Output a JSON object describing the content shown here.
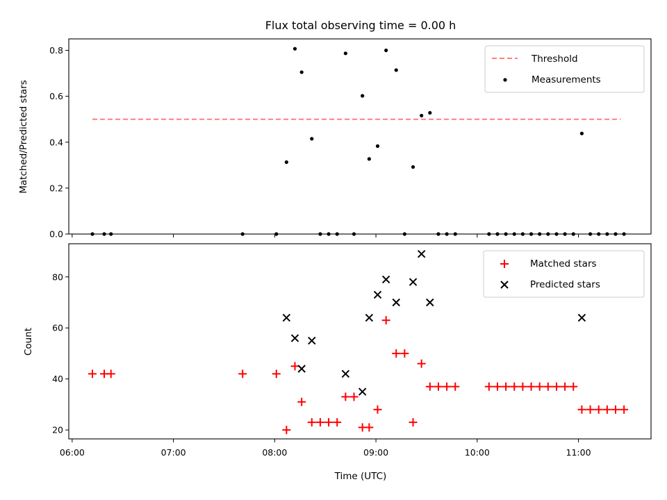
{
  "chart_data": [
    {
      "type": "scatter",
      "title": "Flux total observing time = 0.00 h",
      "ylabel": "Matched/Predicted stars",
      "xlabel": "",
      "xlim": [
        "05:58",
        "11:43"
      ],
      "ylim": [
        0,
        0.85
      ],
      "yticks": [
        0.0,
        0.2,
        0.4,
        0.6,
        0.8
      ],
      "ytick_labels": [
        "0.0",
        "0.2",
        "0.4",
        "0.6",
        "0.8"
      ],
      "xticks": [
        "06:00",
        "07:00",
        "08:00",
        "09:00",
        "10:00",
        "11:00"
      ],
      "legend_position": "top-right",
      "series": [
        {
          "name": "Threshold",
          "kind": "dashed-line",
          "color": "#ff7f7f",
          "x": [
            "06:12",
            "11:25"
          ],
          "y": [
            0.5,
            0.5
          ]
        },
        {
          "name": "Measurements",
          "kind": "dots",
          "color": "#000000",
          "x": [
            "06:12",
            "06:19",
            "06:23",
            "07:41",
            "08:01",
            "08:07",
            "08:12",
            "08:16",
            "08:22",
            "08:27",
            "08:32",
            "08:37",
            "08:42",
            "08:47",
            "08:52",
            "08:56",
            "09:01",
            "09:06",
            "09:12",
            "09:17",
            "09:22",
            "09:27",
            "09:32",
            "09:37",
            "09:42",
            "09:47",
            "10:07",
            "10:12",
            "10:17",
            "10:22",
            "10:27",
            "10:32",
            "10:37",
            "10:42",
            "10:47",
            "10:52",
            "10:57",
            "11:02",
            "11:07",
            "11:12",
            "11:17",
            "11:22",
            "11:27"
          ],
          "y": [
            0,
            0,
            0,
            0,
            0,
            0.313,
            0.807,
            0.705,
            0.415,
            0,
            0,
            0,
            0.787,
            0,
            0.602,
            0.327,
            0.383,
            0.8,
            0.714,
            0,
            0.292,
            0.516,
            0.528,
            0,
            0,
            0,
            0,
            0,
            0,
            0,
            0,
            0,
            0,
            0,
            0,
            0,
            0,
            0.438,
            0,
            0,
            0,
            0,
            0
          ]
        }
      ]
    },
    {
      "type": "scatter",
      "title": "",
      "ylabel": "Count",
      "xlabel": "Time (UTC)",
      "xlim": [
        "05:58",
        "11:43"
      ],
      "ylim": [
        16.5,
        93
      ],
      "yticks": [
        20,
        40,
        60,
        80
      ],
      "ytick_labels": [
        "20",
        "40",
        "60",
        "80"
      ],
      "xticks": [
        "06:00",
        "07:00",
        "08:00",
        "09:00",
        "10:00",
        "11:00"
      ],
      "xtick_labels": [
        "06:00",
        "07:00",
        "08:00",
        "09:00",
        "10:00",
        "11:00"
      ],
      "legend_position": "top-right",
      "series": [
        {
          "name": "Matched stars",
          "marker": "plus",
          "color": "#ff0000",
          "x": [
            "06:12",
            "06:19",
            "06:23",
            "07:41",
            "08:01",
            "08:07",
            "08:12",
            "08:16",
            "08:22",
            "08:27",
            "08:32",
            "08:37",
            "08:42",
            "08:47",
            "08:52",
            "08:56",
            "09:01",
            "09:06",
            "09:12",
            "09:17",
            "09:22",
            "09:27",
            "09:32",
            "09:37",
            "09:42",
            "09:47",
            "10:07",
            "10:12",
            "10:17",
            "10:22",
            "10:27",
            "10:32",
            "10:37",
            "10:42",
            "10:47",
            "10:52",
            "10:57",
            "11:02",
            "11:07",
            "11:12",
            "11:17",
            "11:22",
            "11:27"
          ],
          "y": [
            42,
            42,
            42,
            42,
            42,
            20,
            45,
            31,
            23,
            23,
            23,
            23,
            33,
            33,
            21,
            21,
            28,
            63,
            50,
            50,
            23,
            46,
            37,
            37,
            37,
            37,
            37,
            37,
            37,
            37,
            37,
            37,
            37,
            37,
            37,
            37,
            37,
            28,
            28,
            28,
            28,
            28,
            28
          ]
        },
        {
          "name": "Predicted stars",
          "marker": "x",
          "color": "#000000",
          "x": [
            "08:07",
            "08:12",
            "08:16",
            "08:22",
            "08:42",
            "08:52",
            "08:56",
            "09:01",
            "09:06",
            "09:12",
            "09:22",
            "09:27",
            "09:32",
            "11:02"
          ],
          "y": [
            64,
            56,
            44,
            55,
            42,
            35,
            64,
            73,
            79,
            70,
            78,
            89,
            70,
            64
          ]
        }
      ]
    }
  ]
}
